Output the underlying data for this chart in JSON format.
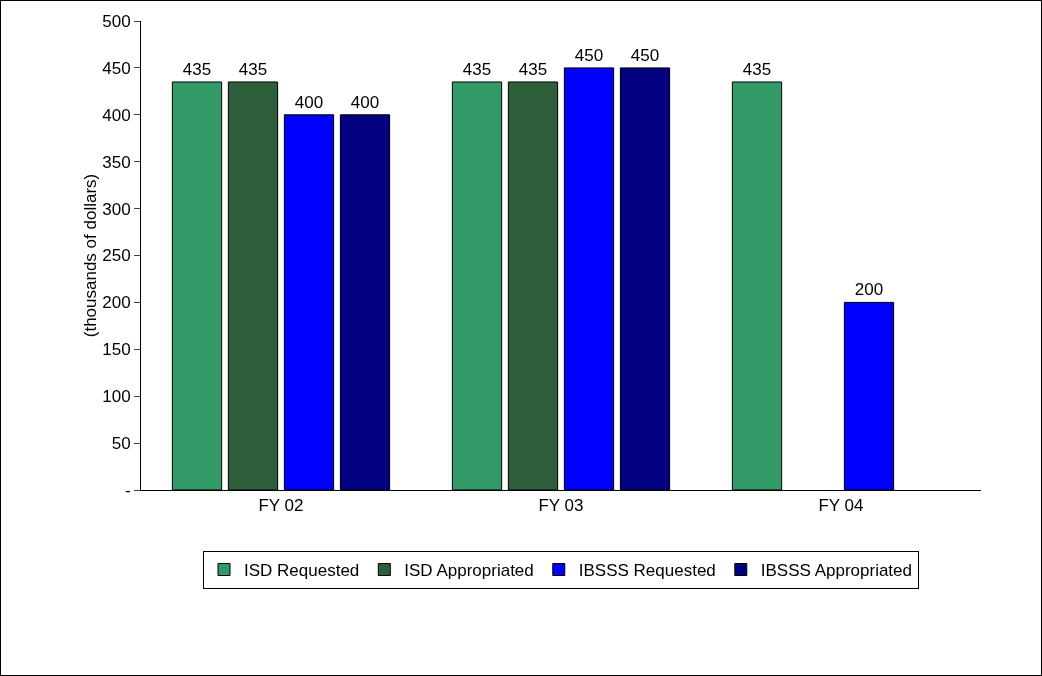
{
  "chart_data": {
    "type": "bar",
    "ylabel": "(thousands of dollars)",
    "categories": [
      "FY 02",
      "FY 03",
      "FY 04"
    ],
    "series": [
      {
        "name": "ISD Requested",
        "color": "#339966",
        "values": [
          435,
          435,
          435
        ]
      },
      {
        "name": "ISD Appropriated",
        "color": "#2f5f3a",
        "values": [
          435,
          435,
          null
        ]
      },
      {
        "name": "IBSSS Requested",
        "color": "#0000ff",
        "values": [
          400,
          450,
          200
        ]
      },
      {
        "name": "IBSSS Appropriated",
        "color": "#000080",
        "values": [
          400,
          450,
          null
        ]
      }
    ],
    "ylim": [
      0,
      500
    ],
    "yticks": [
      {
        "value": 0,
        "label": "-"
      },
      50,
      100,
      150,
      200,
      250,
      300,
      350,
      400,
      450,
      500
    ],
    "data_labels": true,
    "legend": "bottom",
    "grid": false
  }
}
